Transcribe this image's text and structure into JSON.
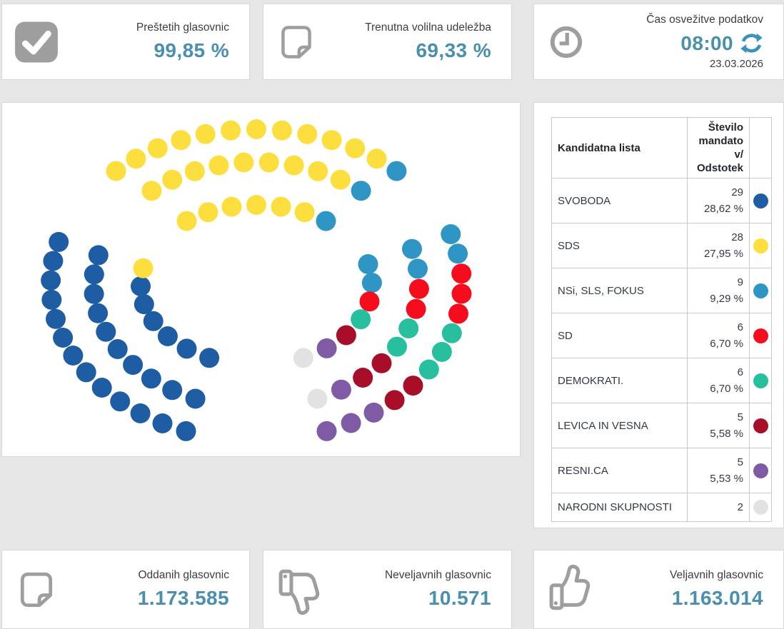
{
  "cards": {
    "top": [
      {
        "label": "Preštetih glasovnic",
        "value": "99,85 %",
        "icon": "check-square-icon"
      },
      {
        "label": "Trenutna volilna udeležba",
        "value": "69,33 %",
        "icon": "ballot-paper-icon"
      },
      {
        "label": "Čas osvežitve podatkov",
        "value": "08:00",
        "date": "23.03.2026",
        "icon": "clock-icon"
      }
    ],
    "bottom": [
      {
        "label": "Oddanih glasovnic",
        "value": "1.173.585",
        "icon": "ballot-paper-icon"
      },
      {
        "label": "Neveljavnih glasovnic",
        "value": "10.571",
        "icon": "thumbs-down-icon"
      },
      {
        "label": "Veljavnih glasovnic",
        "value": "1.163.014",
        "icon": "thumbs-up-icon"
      }
    ]
  },
  "table": {
    "headers": [
      "Kandidatna lista",
      "Število mandatov/ Odstotek"
    ],
    "rows": [
      {
        "party": "SVOBODA",
        "seats": "29",
        "percent": "28,62 %",
        "color": "#1e5ca4"
      },
      {
        "party": "SDS",
        "seats": "28",
        "percent": "27,95 %",
        "color": "#fcdf3e"
      },
      {
        "party": "NSi, SLS, FOKUS",
        "seats": "9",
        "percent": "9,29 %",
        "color": "#2e95c5"
      },
      {
        "party": "SD",
        "seats": "6",
        "percent": "6,70 %",
        "color": "#f50d1e"
      },
      {
        "party": "DEMOKRATI.",
        "seats": "6",
        "percent": "6,70 %",
        "color": "#28bf9f"
      },
      {
        "party": "LEVICA IN VESNA",
        "seats": "5",
        "percent": "5,58 %",
        "color": "#a80e28"
      },
      {
        "party": "RESNI.CA",
        "seats": "5",
        "percent": "5,53 %",
        "color": "#7e5ba4"
      },
      {
        "party": "NARODNI SKUPNOSTI",
        "seats": "2",
        "percent": "",
        "color": "#e2e2e2"
      }
    ]
  },
  "chart_data": {
    "type": "parliament",
    "total_seats": 90,
    "parties": [
      {
        "name": "SVOBODA",
        "seats": 29,
        "percent": 28.62,
        "color": "#1e5ca4"
      },
      {
        "name": "SDS",
        "seats": 28,
        "percent": 27.95,
        "color": "#fcdf3e"
      },
      {
        "name": "NSi, SLS, FOKUS",
        "seats": 9,
        "percent": 9.29,
        "color": "#2e95c5"
      },
      {
        "name": "SD",
        "seats": 6,
        "percent": 6.7,
        "color": "#f50d1e"
      },
      {
        "name": "DEMOKRATI.",
        "seats": 6,
        "percent": 6.7,
        "color": "#28bf9f"
      },
      {
        "name": "LEVICA IN VESNA",
        "seats": 5,
        "percent": 5.58,
        "color": "#a80e28"
      },
      {
        "name": "RESNI.CA",
        "seats": 5,
        "percent": 5.53,
        "color": "#7e5ba4"
      },
      {
        "name": "NARODNI SKUPNOSTI",
        "seats": 2,
        "percent": null,
        "color": "#e2e2e2"
      }
    ],
    "layout_hint": {
      "shape": "circle of seats split into three sectors (left, top, right) with gaps between sectors",
      "sector_order": [
        "left",
        "top",
        "right"
      ],
      "seats_per_ring": [
        13,
        10,
        7
      ],
      "rings": 3
    },
    "seating": {
      "left": {
        "outer": [
          0,
          0,
          0,
          0,
          0,
          0,
          0,
          0,
          0,
          0,
          0,
          0,
          0
        ],
        "middle": [
          0,
          0,
          0,
          0,
          0,
          0,
          0,
          0,
          0,
          0
        ],
        "inner": [
          0,
          0,
          0,
          0,
          0,
          0,
          1
        ]
      },
      "top": {
        "outer": [
          1,
          1,
          1,
          1,
          1,
          1,
          1,
          1,
          1,
          1,
          1,
          1,
          2
        ],
        "middle": [
          1,
          1,
          1,
          1,
          1,
          1,
          1,
          1,
          1,
          2
        ],
        "inner": [
          1,
          1,
          1,
          1,
          1,
          1,
          2
        ]
      },
      "right": {
        "outer": [
          2,
          2,
          3,
          3,
          3,
          4,
          4,
          4,
          5,
          5,
          6,
          6,
          6
        ],
        "middle": [
          2,
          2,
          3,
          3,
          4,
          4,
          5,
          5,
          6,
          7
        ],
        "inner": [
          2,
          2,
          3,
          4,
          5,
          6,
          7
        ]
      }
    },
    "seating_order_note": "left rings listed bottom-to-top, top rings left-to-right, right rings top-to-bottom; values are party indexes"
  },
  "colors": {
    "value_text": "#4a90ad",
    "icon_gray": "#9e9e9e",
    "refresh_blue": "#3b92ba",
    "label_text": "#3d3d3d",
    "page_background": "#e6e6e6"
  }
}
